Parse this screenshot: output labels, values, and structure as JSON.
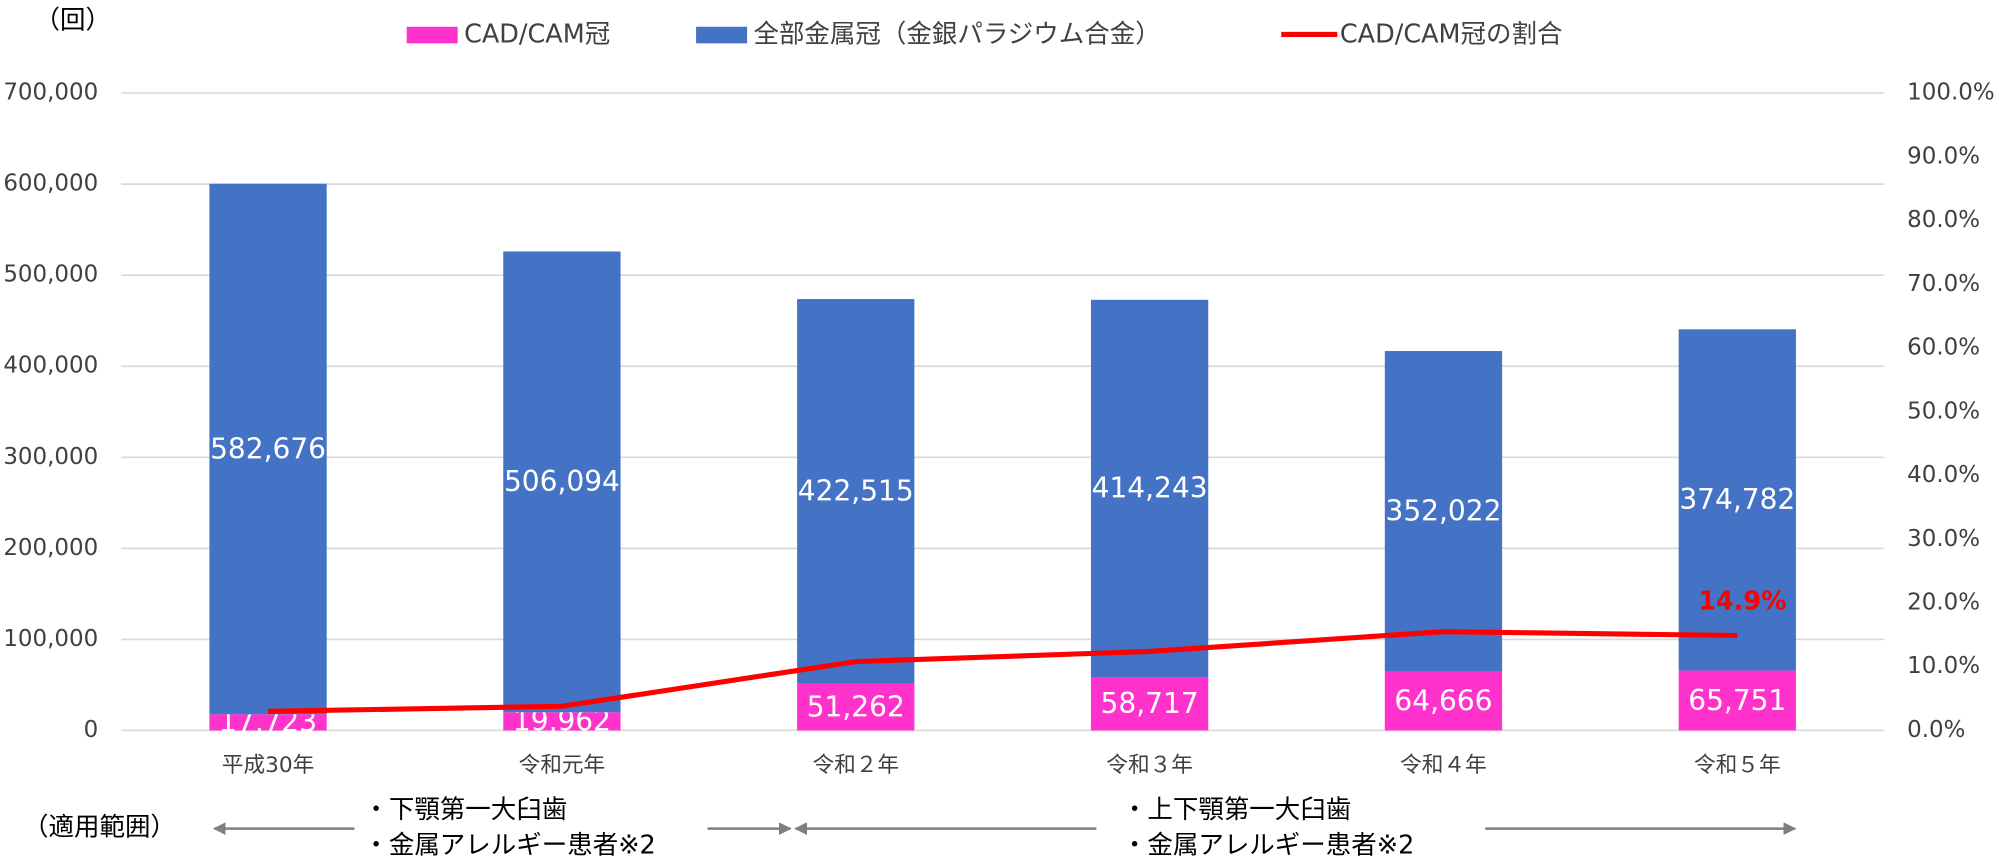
{
  "chart_data": {
    "type": "bar",
    "stacked": true,
    "unit_label": "（回）",
    "categories": [
      "平成30年",
      "令和元年",
      "令和２年",
      "令和３年",
      "令和４年",
      "令和５年"
    ],
    "series": [
      {
        "name": "CAD/CAM冠",
        "type": "bar",
        "color": "#ff33cc",
        "values": [
          17723,
          19962,
          51262,
          58717,
          64666,
          65751
        ],
        "value_labels": [
          "17,723",
          "19,962",
          "51,262",
          "58,717",
          "64,666",
          "65,751"
        ]
      },
      {
        "name": "全部金属冠（金銀パラジウム合金）",
        "type": "bar",
        "color": "#4472c4",
        "values": [
          582676,
          506094,
          422515,
          414243,
          352022,
          374782
        ],
        "value_labels": [
          "582,676",
          "506,094",
          "422,515",
          "414,243",
          "352,022",
          "374,782"
        ]
      },
      {
        "name": "CAD/CAM冠の割合",
        "type": "line",
        "axis": "y2",
        "color": "#ff0000",
        "values": [
          3.0,
          3.8,
          10.8,
          12.4,
          15.5,
          14.9
        ],
        "value_labels": [
          null,
          null,
          null,
          null,
          null,
          "14.9%"
        ]
      }
    ],
    "ylim": [
      0,
      700000
    ],
    "yticks": [
      0,
      {
        "value": 100000,
        "label": "100,000"
      },
      {
        "value": 200000,
        "label": "200,000"
      },
      {
        "value": 300000,
        "label": "300,000"
      },
      {
        "value": 400000,
        "label": "400,000"
      },
      {
        "value": 500000,
        "label": "500,000"
      },
      {
        "value": 600000,
        "label": "600,000"
      },
      {
        "value": 700000,
        "label": "700,000"
      }
    ],
    "y2lim": [
      0,
      100
    ],
    "y2ticks": [
      {
        "value": 0,
        "label": "0.0%"
      },
      {
        "value": 10,
        "label": "10.0%"
      },
      {
        "value": 20,
        "label": "20.0%"
      },
      {
        "value": 30,
        "label": "30.0%"
      },
      {
        "value": 40,
        "label": "40.0%"
      },
      {
        "value": 50,
        "label": "50.0%"
      },
      {
        "value": 60,
        "label": "60.0%"
      },
      {
        "value": 70,
        "label": "70.0%"
      },
      {
        "value": 80,
        "label": "80.0%"
      },
      {
        "value": 90,
        "label": "90.0%"
      },
      {
        "value": 100,
        "label": "100.0%"
      }
    ],
    "grid": true,
    "legend": "top",
    "scope_label": "（適用範囲）",
    "scopes": [
      {
        "lines": [
          "・下顎第一大臼歯",
          "・金属アレルギー患者※2"
        ]
      },
      {
        "lines": [
          "・上下顎第一大臼歯",
          "・金属アレルギー患者※2"
        ]
      }
    ]
  }
}
